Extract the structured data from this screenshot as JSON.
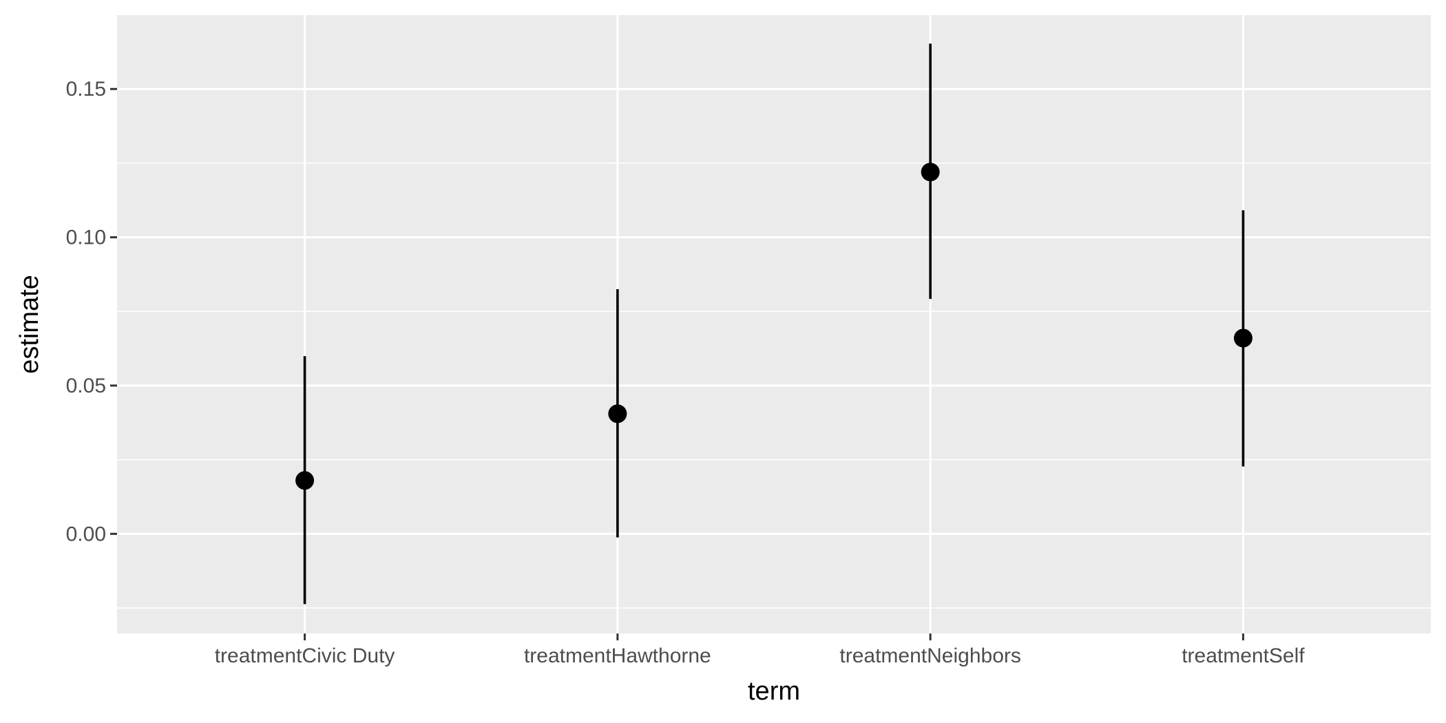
{
  "chart_data": {
    "type": "pointrange",
    "title": "",
    "xlabel": "term",
    "ylabel": "estimate",
    "categories": [
      "treatmentCivic Duty",
      "treatmentHawthorne",
      "treatmentNeighbors",
      "treatmentSelf"
    ],
    "series": [
      {
        "estimate": [
          0.018,
          0.0405,
          0.122,
          0.066
        ],
        "conf_low": [
          -0.0237,
          -0.0012,
          0.0792,
          0.0227
        ],
        "conf_high": [
          0.0599,
          0.0825,
          0.1653,
          0.1091
        ]
      }
    ],
    "y_ticks": [
      0.0,
      0.05,
      0.1,
      0.15
    ],
    "y_tick_labels": [
      "0.00",
      "0.05",
      "0.10",
      "0.15"
    ],
    "ylim": [
      -0.0336,
      0.1749
    ],
    "grid": true,
    "legend": "none",
    "colors": {
      "panel_background": "#ebebeb",
      "grid_major": "#ffffff",
      "grid_minor": "#ffffff",
      "marks": "#000000",
      "tick_text": "#4d4d4d",
      "axis_ticks": "#333333"
    }
  }
}
